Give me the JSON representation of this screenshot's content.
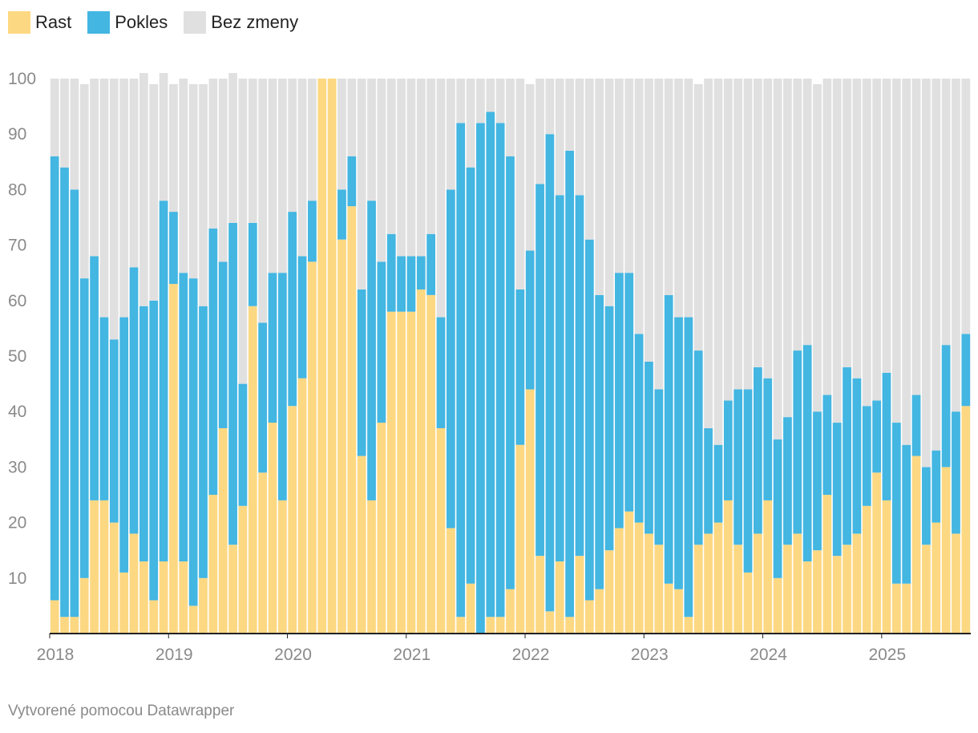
{
  "legend": {
    "rast_label": "Rast",
    "pokles_label": "Pokles",
    "bez_zmeny_label": "Bez zmeny"
  },
  "colors": {
    "rast": "#fdd882",
    "pokles": "#43b6e2",
    "bez_zmeny": "#e0e0e0",
    "axis": "#222222",
    "tick_text": "#8a8a8a"
  },
  "footer": {
    "credit": "Vytvorené pomocou Datawrapper"
  },
  "chart_data": {
    "type": "bar",
    "stacked": true,
    "title": "",
    "xlabel": "",
    "ylabel": "",
    "ylim": [
      0,
      100
    ],
    "yticks": [
      10,
      20,
      30,
      40,
      50,
      60,
      70,
      80,
      90,
      100
    ],
    "xticks": [
      {
        "label": "2018",
        "index": 0
      },
      {
        "label": "2019",
        "index": 12
      },
      {
        "label": "2020",
        "index": 24
      },
      {
        "label": "2021",
        "index": 36
      },
      {
        "label": "2022",
        "index": 48
      },
      {
        "label": "2023",
        "index": 60
      },
      {
        "label": "2024",
        "index": 72
      },
      {
        "label": "2025",
        "index": 84
      }
    ],
    "start": "2018-01",
    "period": "monthly",
    "series": [
      {
        "name": "Rast",
        "key": "rast",
        "values": [
          6,
          3,
          3,
          10,
          24,
          24,
          20,
          11,
          18,
          13,
          6,
          13,
          63,
          13,
          5,
          10,
          25,
          37,
          16,
          23,
          59,
          29,
          38,
          24,
          41,
          46,
          67,
          100,
          100,
          71,
          77,
          32,
          24,
          38,
          58,
          58,
          58,
          62,
          61,
          37,
          19,
          3,
          9,
          0,
          3,
          3,
          8,
          34,
          44,
          14,
          4,
          13,
          3,
          14,
          6,
          8,
          15,
          19,
          22,
          20,
          18,
          16,
          9,
          8,
          3,
          16,
          18,
          20,
          24,
          16,
          11,
          18,
          24,
          10,
          16,
          18,
          13,
          15,
          25,
          14,
          16,
          18,
          23,
          29,
          24,
          9,
          9,
          32,
          16,
          20,
          30,
          18,
          41
        ]
      },
      {
        "name": "Pokles",
        "key": "pokles",
        "values": [
          80,
          81,
          77,
          54,
          44,
          33,
          33,
          46,
          48,
          46,
          54,
          65,
          13,
          52,
          59,
          49,
          48,
          30,
          58,
          22,
          15,
          27,
          27,
          41,
          35,
          22,
          11,
          0,
          0,
          9,
          9,
          30,
          54,
          29,
          14,
          10,
          10,
          6,
          11,
          20,
          61,
          89,
          75,
          92,
          91,
          89,
          78,
          28,
          25,
          67,
          86,
          66,
          84,
          65,
          65,
          53,
          44,
          46,
          43,
          34,
          31,
          28,
          52,
          49,
          54,
          35,
          19,
          14,
          18,
          28,
          33,
          30,
          22,
          25,
          23,
          33,
          39,
          25,
          18,
          24,
          32,
          28,
          18,
          13,
          23,
          29,
          25,
          11,
          14,
          13,
          22,
          22,
          13
        ]
      },
      {
        "name": "Bez zmeny",
        "key": "bez_zmeny",
        "values": [
          14,
          16,
          20,
          35,
          32,
          43,
          47,
          43,
          34,
          42,
          39,
          23,
          23,
          35,
          35,
          40,
          27,
          33,
          27,
          55,
          26,
          44,
          35,
          35,
          24,
          32,
          22,
          0,
          0,
          20,
          14,
          38,
          22,
          33,
          28,
          32,
          32,
          32,
          28,
          43,
          20,
          8,
          16,
          8,
          6,
          8,
          14,
          38,
          30,
          19,
          10,
          21,
          13,
          21,
          29,
          39,
          41,
          35,
          35,
          46,
          51,
          56,
          39,
          43,
          43,
          48,
          63,
          66,
          58,
          56,
          56,
          52,
          54,
          65,
          61,
          49,
          48,
          59,
          57,
          62,
          52,
          54,
          59,
          58,
          53,
          62,
          66,
          57,
          70,
          67,
          48,
          60,
          46
        ]
      }
    ]
  }
}
